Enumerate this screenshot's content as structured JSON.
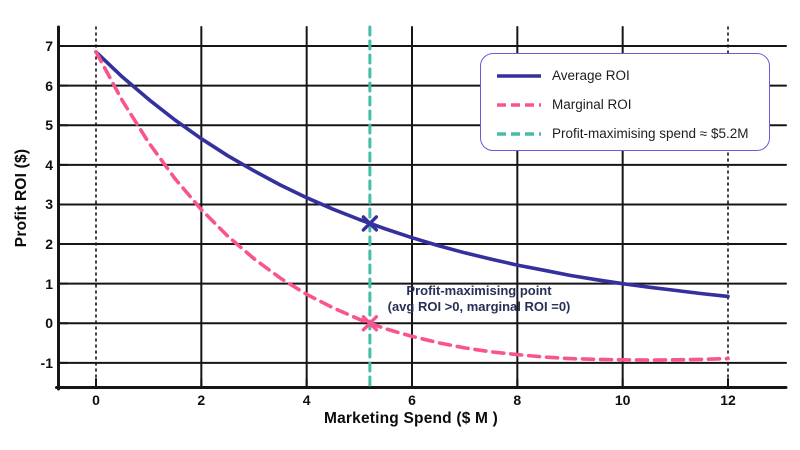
{
  "colors": {
    "avg": "#34309d",
    "marginal": "#f9558d",
    "vline": "#45bda8",
    "grid": "#161616",
    "legend_border": "#6a5cd8",
    "annotation_text": "#283055",
    "tick_text": "#0f0f0f"
  },
  "chart_data": {
    "type": "line",
    "title": "",
    "xlabel": "Marketing Spend ($ M )",
    "ylabel": "Profit ROI ($)",
    "xlim": [
      -0.7,
      13.1
    ],
    "ylim": [
      -1.6,
      7.5
    ],
    "grid": true,
    "xticks": [
      0,
      2,
      4,
      6,
      8,
      10,
      12
    ],
    "yticks": [
      7,
      6,
      5,
      4,
      3,
      2,
      1,
      0,
      -1
    ],
    "x": [
      0,
      0.5,
      1,
      1.5,
      2,
      2.5,
      3,
      3.5,
      4,
      4.5,
      5,
      5.5,
      6,
      6.5,
      7,
      7.5,
      8,
      8.5,
      9,
      9.5,
      10,
      10.5,
      11,
      11.5,
      12
    ],
    "series": [
      {
        "name": "Average ROI",
        "style": "solid",
        "color_key": "avg",
        "values": [
          6.85,
          6.22,
          5.65,
          5.13,
          4.66,
          4.23,
          3.85,
          3.49,
          3.17,
          2.88,
          2.62,
          2.38,
          2.16,
          1.96,
          1.78,
          1.62,
          1.47,
          1.34,
          1.21,
          1.1,
          1.0,
          0.91,
          0.83,
          0.75,
          0.68
        ]
      },
      {
        "name": "Marginal ROI",
        "style": "dashed",
        "color_key": "marginal",
        "values": [
          6.85,
          5.62,
          4.56,
          3.65,
          2.87,
          2.2,
          1.63,
          1.14,
          0.73,
          0.39,
          0.1,
          -0.14,
          -0.33,
          -0.49,
          -0.62,
          -0.72,
          -0.79,
          -0.85,
          -0.89,
          -0.91,
          -0.92,
          -0.93,
          -0.92,
          -0.91,
          -0.89
        ]
      }
    ],
    "vline": {
      "x": 5.2,
      "style": "dashed",
      "color_key": "vline",
      "label": "Profit-maximising spend ≈ $5.2M"
    },
    "markers": [
      {
        "x": 5.2,
        "y": 2.52,
        "series": "avg",
        "shape": "x"
      },
      {
        "x": 5.2,
        "y": 0.0,
        "series": "marginal",
        "shape": "x"
      }
    ],
    "annotation": {
      "line1": "Profit-maximising point",
      "line2": "(avg ROI >0, marginal ROI =0)"
    },
    "legend": {
      "position": "upper right",
      "items": [
        {
          "label": "Average ROI",
          "style": "solid",
          "color_key": "avg"
        },
        {
          "label": "Marginal ROI",
          "style": "dashed",
          "color_key": "marginal"
        },
        {
          "label": "Profit-maximising spend ≈ $5.2M",
          "style": "dashed",
          "color_key": "vline"
        }
      ]
    }
  }
}
